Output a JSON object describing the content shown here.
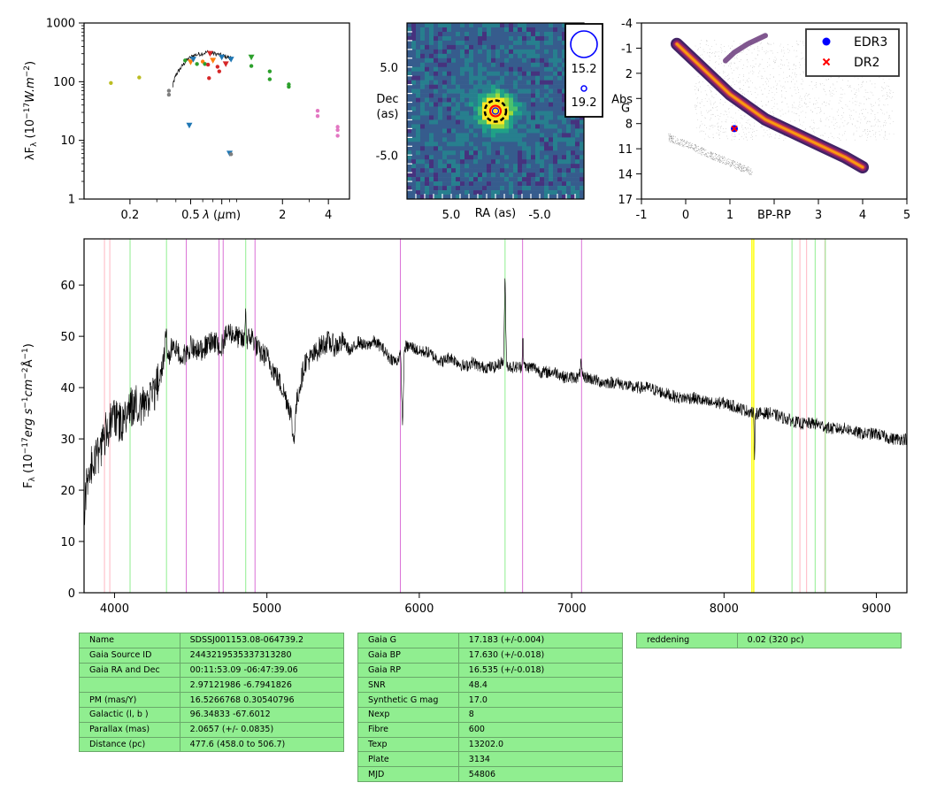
{
  "chart_data": [
    {
      "type": "scatter",
      "name": "sed",
      "ylabel": "λF_λ (10^-17 W.m^-2)",
      "xlabel": "λ (μm)",
      "xscale": "log",
      "yscale": "log",
      "xticks": [
        "0.2",
        "0.5",
        "λ (μm)",
        "2",
        "4"
      ],
      "yticks": [
        "1",
        "10",
        "100",
        "1000"
      ],
      "xlim": [
        0.1,
        5.5
      ],
      "ylim": [
        1,
        1000
      ],
      "points": [
        {
          "x": 0.15,
          "y": 95,
          "color": "#bcbd22",
          "marker": "dot"
        },
        {
          "x": 0.23,
          "y": 118,
          "color": "#bcbd22",
          "marker": "dot"
        },
        {
          "x": 0.36,
          "y": 60,
          "color": "#7f7f7f",
          "marker": "dot"
        },
        {
          "x": 0.36,
          "y": 70,
          "color": "#7f7f7f",
          "marker": "dot"
        },
        {
          "x": 0.46,
          "y": 230,
          "color": "#2ca02c",
          "marker": "dot"
        },
        {
          "x": 0.49,
          "y": 18,
          "color": "#1f77b4",
          "marker": "tri"
        },
        {
          "x": 0.5,
          "y": 215,
          "color": "#ff7f0e",
          "marker": "tri"
        },
        {
          "x": 0.52,
          "y": 240,
          "color": "#1f77b4",
          "marker": "tri"
        },
        {
          "x": 0.55,
          "y": 200,
          "color": "#2ca02c",
          "marker": "dot"
        },
        {
          "x": 0.6,
          "y": 220,
          "color": "#ff7f0e",
          "marker": "dot"
        },
        {
          "x": 0.62,
          "y": 200,
          "color": "#2ca02c",
          "marker": "dot"
        },
        {
          "x": 0.65,
          "y": 195,
          "color": "#d62728",
          "marker": "dot"
        },
        {
          "x": 0.66,
          "y": 115,
          "color": "#d62728",
          "marker": "dot"
        },
        {
          "x": 0.67,
          "y": 300,
          "color": "#d62728",
          "marker": "tri"
        },
        {
          "x": 0.7,
          "y": 230,
          "color": "#ff7f0e",
          "marker": "tri"
        },
        {
          "x": 0.75,
          "y": 180,
          "color": "#d62728",
          "marker": "dot"
        },
        {
          "x": 0.77,
          "y": 150,
          "color": "#d62728",
          "marker": "dot"
        },
        {
          "x": 0.8,
          "y": 260,
          "color": "#1f77b4",
          "marker": "tri"
        },
        {
          "x": 0.85,
          "y": 200,
          "color": "#d62728",
          "marker": "tri"
        },
        {
          "x": 0.9,
          "y": 6,
          "color": "#1f77b4",
          "marker": "tri"
        },
        {
          "x": 0.92,
          "y": 5.8,
          "color": "#7f7f7f",
          "marker": "dot"
        },
        {
          "x": 0.92,
          "y": 240,
          "color": "#1f77b4",
          "marker": "tri"
        },
        {
          "x": 1.25,
          "y": 260,
          "color": "#2ca02c",
          "marker": "tri"
        },
        {
          "x": 1.25,
          "y": 185,
          "color": "#2ca02c",
          "marker": "dot"
        },
        {
          "x": 1.65,
          "y": 150,
          "color": "#2ca02c",
          "marker": "dot"
        },
        {
          "x": 1.65,
          "y": 110,
          "color": "#2ca02c",
          "marker": "dot"
        },
        {
          "x": 2.2,
          "y": 90,
          "color": "#2ca02c",
          "marker": "dot"
        },
        {
          "x": 2.2,
          "y": 82,
          "color": "#2ca02c",
          "marker": "dot"
        },
        {
          "x": 3.4,
          "y": 32,
          "color": "#e377c2",
          "marker": "dot"
        },
        {
          "x": 3.4,
          "y": 26,
          "color": "#e377c2",
          "marker": "dot"
        },
        {
          "x": 4.6,
          "y": 17,
          "color": "#e377c2",
          "marker": "dot"
        },
        {
          "x": 4.6,
          "y": 15,
          "color": "#e377c2",
          "marker": "dot"
        },
        {
          "x": 4.6,
          "y": 12,
          "color": "#e377c2",
          "marker": "dot"
        }
      ],
      "spectrum": {
        "x": [
          0.38,
          0.4,
          0.43,
          0.47,
          0.52,
          0.58,
          0.65,
          0.72,
          0.8,
          0.88,
          0.92
        ],
        "y": [
          80,
          130,
          170,
          230,
          280,
          300,
          320,
          300,
          280,
          260,
          250
        ]
      }
    },
    {
      "type": "heatmap",
      "name": "image",
      "xlabel": "RA (as)",
      "ylabel": "Dec\n(as)",
      "xticks": [
        "5.0",
        "-5.0"
      ],
      "yticks": [
        "5.0",
        "-5.0"
      ],
      "xlim": [
        10,
        -10
      ],
      "ylim": [
        -10,
        10
      ],
      "source": {
        "x": 0,
        "y": 0
      },
      "legend": [
        {
          "label": "15.2",
          "size": "large"
        },
        {
          "label": "19.2",
          "size": "small"
        }
      ]
    },
    {
      "type": "scatter",
      "name": "hr-diagram",
      "xlabel": "BP-RP",
      "ylabel": "Abs\nG",
      "xticks": [
        "-1",
        "0",
        "1",
        "BP-RP",
        "3",
        "4",
        "5"
      ],
      "yticks": [
        "-4",
        "-1",
        "2",
        "Abs",
        "8",
        "11",
        "14",
        "17"
      ],
      "xlim": [
        -1,
        5
      ],
      "ylim": [
        17,
        -4
      ],
      "legend": [
        "EDR3",
        "DR2"
      ],
      "points": [
        {
          "x": 1.1,
          "y": 8.6,
          "series": "EDR3"
        },
        {
          "x": 1.1,
          "y": 8.6,
          "series": "DR2"
        }
      ]
    },
    {
      "type": "line",
      "name": "spectrum",
      "ylabel": "F_λ (10^-17 erg s^-1 cm^-2 Å^-1)",
      "xlabel": "",
      "xlim": [
        3800,
        9200
      ],
      "ylim": [
        0,
        69
      ],
      "xticks": [
        4000,
        5000,
        6000,
        7000,
        8000,
        9000
      ],
      "yticks": [
        0,
        10,
        20,
        30,
        40,
        50,
        60
      ],
      "flux_anchors": [
        [
          3800,
          14
        ],
        [
          3820,
          22
        ],
        [
          3860,
          26
        ],
        [
          3900,
          27
        ],
        [
          3950,
          32
        ],
        [
          4000,
          34
        ],
        [
          4050,
          33
        ],
        [
          4100,
          36
        ],
        [
          4150,
          37
        ],
        [
          4200,
          36
        ],
        [
          4250,
          38
        ],
        [
          4300,
          42
        ],
        [
          4330,
          47
        ],
        [
          4350,
          45
        ],
        [
          4400,
          47
        ],
        [
          4450,
          46
        ],
        [
          4500,
          48
        ],
        [
          4550,
          47
        ],
        [
          4600,
          48
        ],
        [
          4650,
          49
        ],
        [
          4700,
          48
        ],
        [
          4750,
          51
        ],
        [
          4800,
          50
        ],
        [
          4850,
          49
        ],
        [
          4900,
          50
        ],
        [
          4950,
          47
        ],
        [
          5000,
          46
        ],
        [
          5050,
          43
        ],
        [
          5100,
          40
        ],
        [
          5150,
          36
        ],
        [
          5200,
          38
        ],
        [
          5250,
          45
        ],
        [
          5300,
          46
        ],
        [
          5350,
          48
        ],
        [
          5400,
          49
        ],
        [
          5450,
          48
        ],
        [
          5500,
          49
        ],
        [
          5550,
          47
        ],
        [
          5600,
          49
        ],
        [
          5650,
          48
        ],
        [
          5700,
          49
        ],
        [
          5750,
          48
        ],
        [
          5800,
          46
        ],
        [
          5850,
          45
        ],
        [
          5900,
          48
        ],
        [
          5950,
          48
        ],
        [
          6000,
          47
        ],
        [
          6050,
          47
        ],
        [
          6100,
          46
        ],
        [
          6150,
          45
        ],
        [
          6200,
          46
        ],
        [
          6250,
          45
        ],
        [
          6300,
          44
        ],
        [
          6350,
          45
        ],
        [
          6400,
          44
        ],
        [
          6450,
          44
        ],
        [
          6500,
          44
        ],
        [
          6540,
          45
        ],
        [
          6600,
          44
        ],
        [
          6650,
          44
        ],
        [
          6700,
          44
        ],
        [
          6750,
          44
        ],
        [
          6800,
          43
        ],
        [
          6850,
          43
        ],
        [
          6900,
          43
        ],
        [
          6950,
          42
        ],
        [
          7000,
          42
        ],
        [
          7100,
          42
        ],
        [
          7200,
          41
        ],
        [
          7300,
          41
        ],
        [
          7400,
          40
        ],
        [
          7500,
          40
        ],
        [
          7600,
          39
        ],
        [
          7700,
          38
        ],
        [
          7800,
          38
        ],
        [
          7900,
          37
        ],
        [
          8000,
          37
        ],
        [
          8100,
          36
        ],
        [
          8200,
          35
        ],
        [
          8300,
          35
        ],
        [
          8400,
          34
        ],
        [
          8500,
          33
        ],
        [
          8600,
          33
        ],
        [
          8700,
          32
        ],
        [
          8800,
          32
        ],
        [
          8900,
          31
        ],
        [
          9000,
          31
        ],
        [
          9100,
          30
        ],
        [
          9200,
          30
        ]
      ],
      "features": [
        [
          4340,
          6,
          6
        ],
        [
          4384,
          15,
          3
        ],
        [
          4860,
          4,
          7
        ],
        [
          5175,
          14,
          -7
        ],
        [
          5890,
          8,
          -14
        ],
        [
          6563,
          6,
          16
        ],
        [
          6680,
          5,
          6
        ],
        [
          7060,
          6,
          3
        ],
        [
          8200,
          4,
          -8
        ]
      ],
      "noise_seed": 7,
      "lines": [
        {
          "x": 3934,
          "color": "#ffb6c1"
        },
        {
          "x": 3969,
          "color": "#ffb6c1"
        },
        {
          "x": 4102,
          "color": "#90ee90"
        },
        {
          "x": 4341,
          "color": "#90ee90"
        },
        {
          "x": 4471,
          "color": "#da70d6"
        },
        {
          "x": 4686,
          "color": "#da70d6"
        },
        {
          "x": 4713,
          "color": "#da70d6"
        },
        {
          "x": 4861,
          "color": "#90ee90"
        },
        {
          "x": 4922,
          "color": "#da70d6"
        },
        {
          "x": 5876,
          "color": "#da70d6"
        },
        {
          "x": 6563,
          "color": "#90ee90"
        },
        {
          "x": 6678,
          "color": "#da70d6"
        },
        {
          "x": 7065,
          "color": "#da70d6"
        },
        {
          "x": 8183,
          "color": "#ffff00"
        },
        {
          "x": 8195,
          "color": "#ffff00"
        },
        {
          "x": 8446,
          "color": "#90ee90"
        },
        {
          "x": 8498,
          "color": "#ffb6c1"
        },
        {
          "x": 8542,
          "color": "#ffb6c1"
        },
        {
          "x": 8598,
          "color": "#90ee90"
        },
        {
          "x": 8662,
          "color": "#ffb6c1"
        },
        {
          "x": 8665,
          "color": "#90ee90"
        }
      ]
    }
  ],
  "tables": {
    "left": [
      [
        "Name",
        "SDSSJ001153.08-064739.2"
      ],
      [
        "Gaia Source ID",
        "2443219535337313280"
      ],
      [
        "Gaia RA and Dec",
        "00:11:53.09    -06:47:39.06"
      ],
      [
        "",
        "2.97121986    -6.7941826"
      ],
      [
        "PM (mas/Y)",
        "16.5266768    0.30540796"
      ],
      [
        "Galactic (l, b )",
        "96.34833    -67.6012"
      ],
      [
        "Parallax (mas)",
        "2.0657 (+/- 0.0835)"
      ],
      [
        "Distance (pc)",
        "477.6 (458.0 to 506.7)"
      ]
    ],
    "middle": [
      [
        "Gaia G",
        "17.183 (+/-0.004)"
      ],
      [
        "Gaia BP",
        "17.630 (+/-0.018)"
      ],
      [
        "Gaia RP",
        "16.535 (+/-0.018)"
      ],
      [
        "SNR",
        "48.4"
      ],
      [
        "Synthetic G mag",
        "17.0"
      ],
      [
        "Nexp",
        "8"
      ],
      [
        "Fibre",
        "600"
      ],
      [
        "Texp",
        "13202.0"
      ],
      [
        "Plate",
        "3134"
      ],
      [
        "MJD",
        "54806"
      ]
    ],
    "right": [
      [
        "reddening",
        "0.02 (320 pc)"
      ]
    ]
  },
  "colors": {
    "table_bg": "#90ee90",
    "edr3": "#0000ff",
    "dr2": "#ff0000"
  }
}
